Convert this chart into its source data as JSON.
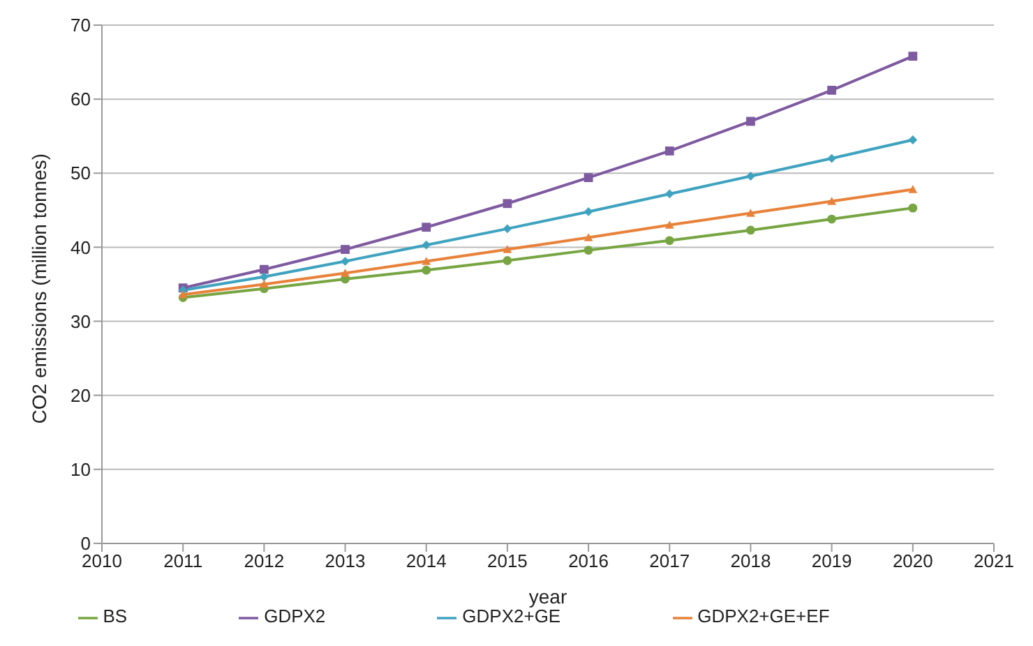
{
  "chart_data": {
    "type": "line",
    "xlabel": "year",
    "ylabel": "CO2 emissions (million tonnes)",
    "x": [
      2011,
      2012,
      2013,
      2014,
      2015,
      2016,
      2017,
      2018,
      2019,
      2020
    ],
    "xlim": [
      2010,
      2021
    ],
    "xticks": [
      2010,
      2011,
      2012,
      2013,
      2014,
      2015,
      2016,
      2017,
      2018,
      2019,
      2020,
      2021
    ],
    "ylim": [
      0,
      70
    ],
    "yticks": [
      0,
      10,
      20,
      30,
      40,
      50,
      60,
      70
    ],
    "grid": "y",
    "legend": "bottom",
    "series": [
      {
        "name": "BS",
        "color": "#77a542",
        "marker": "circle",
        "values": [
          33.2,
          34.4,
          35.7,
          36.9,
          38.2,
          39.6,
          40.9,
          42.3,
          43.8,
          45.3
        ]
      },
      {
        "name": "GDPX2",
        "color": "#7e5aa0",
        "marker": "square",
        "values": [
          34.5,
          37,
          39.7,
          42.7,
          45.9,
          49.4,
          53,
          57,
          61.2,
          65.8
        ]
      },
      {
        "name": "GDPX2+GE",
        "color": "#3fa3c0",
        "marker": "diamond",
        "values": [
          34.2,
          36,
          38.1,
          40.3,
          42.5,
          44.8,
          47.2,
          49.6,
          52,
          54.5
        ]
      },
      {
        "name": "GDPX2+GE+EF",
        "color": "#e8823a",
        "marker": "triangle",
        "values": [
          33.6,
          35,
          36.5,
          38.1,
          39.7,
          41.3,
          43,
          44.6,
          46.2,
          47.8
        ]
      }
    ]
  }
}
